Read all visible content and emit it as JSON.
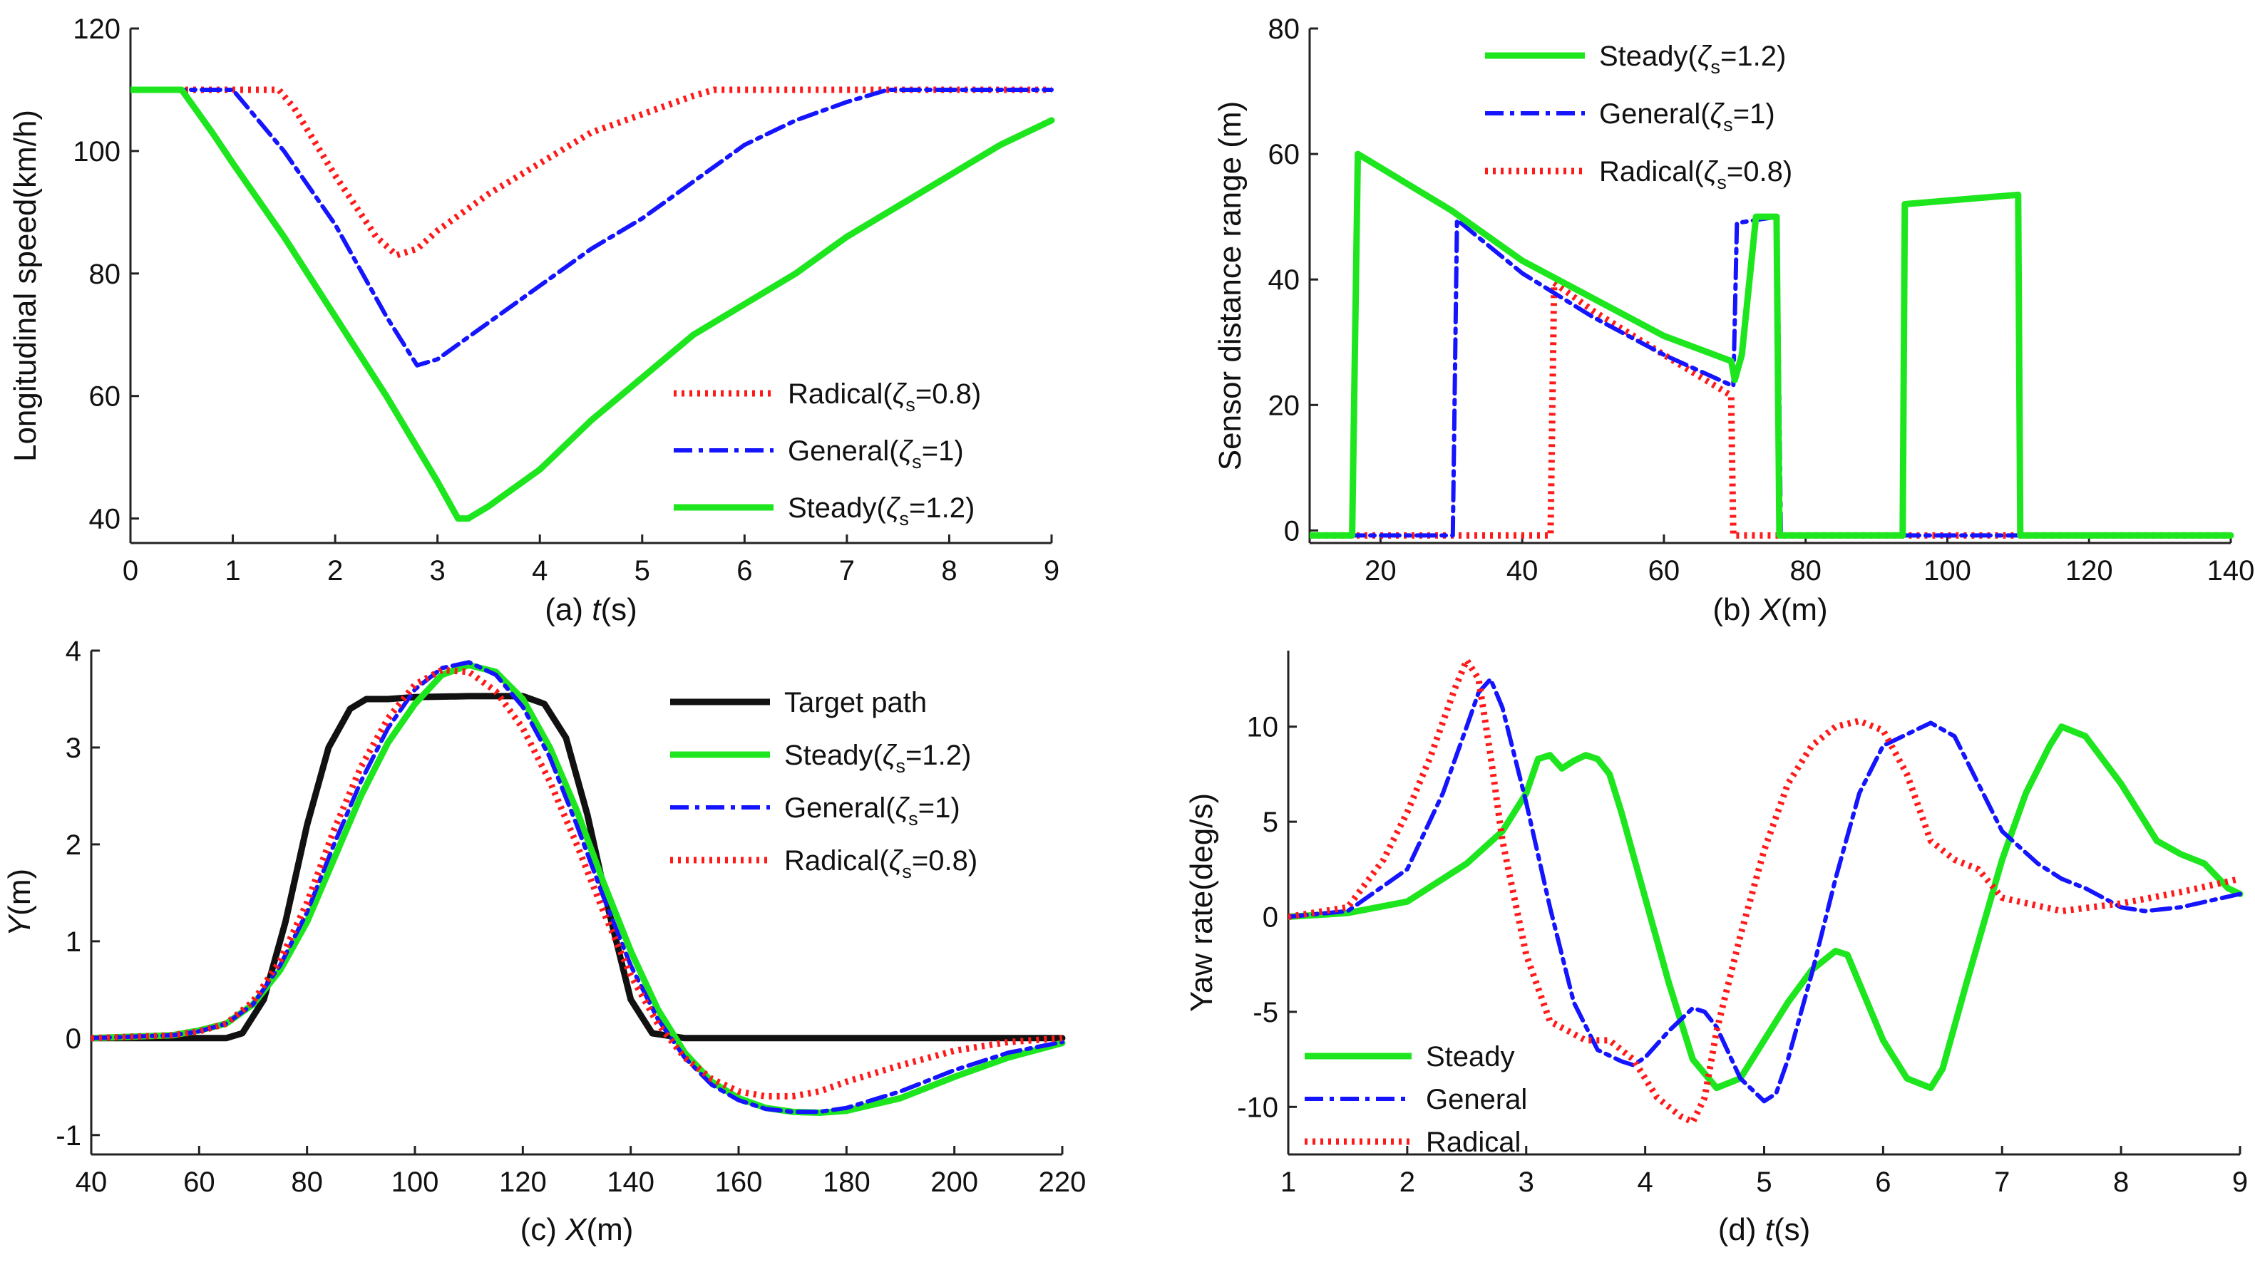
{
  "figure": {
    "panels": 4
  },
  "chart_data": [
    {
      "id": "a",
      "type": "line",
      "caption_prefix": "(a) ",
      "xlabel": "t",
      "xunit": "(s)",
      "ylabel": "Longitudinal speed(km/h)",
      "xlim": [
        0,
        9
      ],
      "ylim": [
        36,
        120
      ],
      "xticks": [
        0,
        1,
        2,
        3,
        4,
        5,
        6,
        7,
        8,
        9
      ],
      "yticks": [
        40,
        60,
        80,
        100,
        120
      ],
      "legend_position": "bottom-right",
      "legend_order": [
        0,
        1,
        2
      ],
      "series": [
        {
          "name_base": "Radical(",
          "zeta": "ζ",
          "sub": "s",
          "name_tail": "=0.8)",
          "color": "#ff1a1a",
          "style": "dotted",
          "x": [
            0,
            0.5,
            1.0,
            1.45,
            1.6,
            2.0,
            2.4,
            2.6,
            2.8,
            3.0,
            3.5,
            4.0,
            4.5,
            5.0,
            5.5,
            5.7,
            6.0,
            7.0,
            8.0,
            9.0
          ],
          "y": [
            110,
            110,
            110,
            110,
            107,
            96,
            86,
            83,
            84,
            87,
            93,
            98,
            103,
            106,
            109,
            110,
            110,
            110,
            110,
            110
          ]
        },
        {
          "name_base": "General(",
          "zeta": "ζ",
          "sub": "s",
          "name_tail": "=1)",
          "color": "#1414ff",
          "style": "dashdot",
          "x": [
            0,
            0.5,
            1.0,
            1.5,
            2.0,
            2.5,
            2.8,
            3.0,
            3.5,
            4.0,
            4.5,
            5.0,
            5.5,
            6.0,
            6.5,
            7.0,
            7.4,
            7.6,
            8.0,
            9.0
          ],
          "y": [
            110,
            110,
            110,
            100,
            88,
            73,
            65,
            66,
            72,
            78,
            84,
            89,
            95,
            101,
            105,
            108,
            110,
            110,
            110,
            110
          ]
        },
        {
          "name_base": "Steady(",
          "zeta": "ζ",
          "sub": "s",
          "name_tail": "=1.2)",
          "color": "#1ee61e",
          "style": "solid",
          "x": [
            0,
            0.3,
            0.5,
            0.8,
            1.0,
            1.5,
            2.0,
            2.5,
            3.0,
            3.2,
            3.3,
            3.5,
            4.0,
            4.5,
            5.0,
            5.5,
            6.0,
            6.5,
            7.0,
            7.5,
            8.0,
            8.5,
            9.0
          ],
          "y": [
            110,
            110,
            110,
            103,
            98,
            86,
            73,
            60,
            46,
            40,
            40,
            42,
            48,
            56,
            63,
            70,
            75,
            80,
            86,
            91,
            96,
            101,
            105
          ]
        }
      ]
    },
    {
      "id": "b",
      "type": "line",
      "caption_prefix": "(b)  ",
      "xlabel": "X",
      "xunit": "(m)",
      "ylabel": "Sensor distance range (m)",
      "xlim": [
        10,
        140
      ],
      "ylim": [
        -2,
        80
      ],
      "xticks": [
        20,
        40,
        60,
        80,
        100,
        120,
        140
      ],
      "yticks": [
        0,
        20,
        40,
        60,
        80
      ],
      "legend_position": "top-center",
      "legend_order": [
        2,
        1,
        0
      ],
      "series": [
        {
          "name_base": "Radical(",
          "zeta": "ζ",
          "sub": "s",
          "name_tail": "=0.8)",
          "color": "#ff1a1a",
          "style": "dotted",
          "x": [
            10,
            44,
            44.5,
            50,
            60,
            69.5,
            69.6,
            69.8,
            140
          ],
          "y": [
            -0.8,
            -0.8,
            39.5,
            35,
            28,
            21.5,
            13,
            -0.8,
            -0.8
          ]
        },
        {
          "name_base": "General(",
          "zeta": "ζ",
          "sub": "s",
          "name_tail": "=1)",
          "color": "#1414ff",
          "style": "dashdot",
          "x": [
            10,
            30.2,
            30.8,
            40,
            50,
            60,
            69.8,
            70.3,
            76,
            76.5,
            140
          ],
          "y": [
            -0.8,
            -0.8,
            49.5,
            41,
            34,
            28,
            23,
            49,
            50,
            -0.8,
            -0.8
          ]
        },
        {
          "name_base": "Steady(",
          "zeta": "ζ",
          "sub": "s",
          "name_tail": "=1.2)",
          "color": "#1ee61e",
          "style": "solid",
          "x": [
            10,
            16,
            16.8,
            30,
            40,
            50,
            60,
            69.5,
            70,
            71,
            73,
            75.5,
            75.9,
            76.3,
            93.7,
            94,
            110,
            110.3,
            140
          ],
          "y": [
            -0.8,
            -0.8,
            60,
            51,
            43,
            37,
            31,
            27,
            24,
            28,
            50,
            50,
            50,
            -0.8,
            -0.8,
            52,
            53.5,
            -0.8,
            -0.8
          ]
        }
      ]
    },
    {
      "id": "c",
      "type": "line",
      "caption_prefix": "(c)  ",
      "xlabel": "X",
      "xunit": "(m)",
      "ylabel": "Y",
      "yunit": "(m)",
      "xlim": [
        40,
        220
      ],
      "ylim": [
        -1.2,
        4
      ],
      "xticks": [
        40,
        60,
        80,
        100,
        120,
        140,
        160,
        180,
        200,
        220
      ],
      "yticks": [
        -1,
        0,
        1,
        2,
        3,
        4
      ],
      "legend_position": "top-right",
      "legend_order": [
        0,
        1,
        2,
        3
      ],
      "series": [
        {
          "name": "Target path",
          "color": "#111111",
          "style": "solid",
          "x": [
            40,
            65,
            68,
            72,
            76,
            80,
            84,
            88,
            91,
            95,
            100,
            110,
            120,
            124,
            128,
            132,
            136,
            140,
            144,
            150,
            160,
            180,
            220
          ],
          "y": [
            0,
            0,
            0.05,
            0.4,
            1.2,
            2.2,
            3.0,
            3.4,
            3.5,
            3.5,
            3.52,
            3.53,
            3.53,
            3.45,
            3.1,
            2.3,
            1.3,
            0.4,
            0.05,
            0,
            0,
            0,
            0
          ]
        },
        {
          "name_base": "Steady(",
          "zeta": "ζ",
          "sub": "s",
          "name_tail": "=1.2)",
          "color": "#1ee61e",
          "style": "solid",
          "x": [
            40,
            55,
            60,
            65,
            70,
            75,
            80,
            85,
            90,
            95,
            100,
            105,
            110,
            115,
            120,
            125,
            130,
            135,
            140,
            145,
            150,
            155,
            160,
            165,
            170,
            175,
            180,
            190,
            200,
            210,
            220
          ],
          "y": [
            0,
            0.03,
            0.08,
            0.15,
            0.35,
            0.7,
            1.2,
            1.85,
            2.5,
            3.05,
            3.45,
            3.75,
            3.85,
            3.78,
            3.5,
            3.0,
            2.35,
            1.6,
            0.9,
            0.3,
            -0.15,
            -0.45,
            -0.62,
            -0.72,
            -0.76,
            -0.77,
            -0.75,
            -0.62,
            -0.4,
            -0.2,
            -0.05
          ]
        },
        {
          "name_base": "General(",
          "zeta": "ζ",
          "sub": "s",
          "name_tail": "=1)",
          "color": "#1414ff",
          "style": "dashdot",
          "x": [
            40,
            55,
            60,
            65,
            70,
            75,
            80,
            85,
            90,
            95,
            100,
            105,
            110,
            115,
            120,
            125,
            130,
            135,
            140,
            145,
            150,
            155,
            160,
            165,
            170,
            175,
            180,
            190,
            200,
            210,
            220
          ],
          "y": [
            0,
            0.03,
            0.07,
            0.15,
            0.35,
            0.75,
            1.3,
            2.0,
            2.65,
            3.2,
            3.6,
            3.82,
            3.88,
            3.75,
            3.42,
            2.9,
            2.2,
            1.45,
            0.75,
            0.2,
            -0.2,
            -0.48,
            -0.64,
            -0.73,
            -0.76,
            -0.76,
            -0.72,
            -0.55,
            -0.33,
            -0.15,
            -0.04
          ]
        },
        {
          "name_base": "Radical(",
          "zeta": "ζ",
          "sub": "s",
          "name_tail": "=0.8)",
          "color": "#ff1a1a",
          "style": "dotted",
          "x": [
            40,
            55,
            60,
            65,
            70,
            75,
            80,
            85,
            90,
            95,
            100,
            105,
            110,
            115,
            120,
            125,
            130,
            135,
            140,
            145,
            150,
            155,
            160,
            165,
            170,
            175,
            180,
            190,
            200,
            210,
            220
          ],
          "y": [
            0,
            0.03,
            0.07,
            0.15,
            0.38,
            0.8,
            1.4,
            2.15,
            2.8,
            3.3,
            3.65,
            3.8,
            3.78,
            3.58,
            3.2,
            2.65,
            2.0,
            1.3,
            0.65,
            0.15,
            -0.2,
            -0.42,
            -0.55,
            -0.6,
            -0.6,
            -0.55,
            -0.45,
            -0.28,
            -0.13,
            -0.04,
            0
          ]
        }
      ]
    },
    {
      "id": "d",
      "type": "line",
      "caption_prefix": "(d)  ",
      "xlabel": "t",
      "xunit": "(s)",
      "ylabel": "Yaw rate(deg/s)",
      "xlim": [
        1,
        9
      ],
      "ylim": [
        -12.5,
        14
      ],
      "xticks": [
        1,
        2,
        3,
        4,
        5,
        6,
        7,
        8,
        9
      ],
      "yticks": [
        -10,
        -5,
        0,
        5,
        10
      ],
      "legend_position": "bottom-left",
      "legend_order": [
        0,
        1,
        2
      ],
      "series": [
        {
          "name": "Steady",
          "color": "#1ee61e",
          "style": "solid",
          "x": [
            1,
            1.5,
            2.0,
            2.5,
            2.8,
            3.0,
            3.1,
            3.2,
            3.3,
            3.4,
            3.5,
            3.6,
            3.7,
            3.8,
            4.0,
            4.2,
            4.4,
            4.6,
            4.8,
            5.0,
            5.2,
            5.4,
            5.6,
            5.7,
            5.8,
            6.0,
            6.2,
            6.4,
            6.5,
            6.7,
            7.0,
            7.2,
            7.4,
            7.5,
            7.7,
            8.0,
            8.3,
            8.5,
            8.7,
            8.9,
            9.0
          ],
          "y": [
            0,
            0.2,
            0.8,
            2.8,
            4.5,
            6.5,
            8.3,
            8.5,
            7.8,
            8.2,
            8.5,
            8.3,
            7.5,
            5.5,
            1.0,
            -3.5,
            -7.5,
            -9.0,
            -8.5,
            -6.5,
            -4.5,
            -2.8,
            -1.8,
            -2.0,
            -3.5,
            -6.5,
            -8.5,
            -9.0,
            -8.0,
            -3.5,
            3.0,
            6.5,
            9.0,
            10.0,
            9.5,
            7.0,
            4.0,
            3.3,
            2.8,
            1.5,
            1.2
          ]
        },
        {
          "name": "General",
          "color": "#1414ff",
          "style": "dashdot",
          "x": [
            1,
            1.5,
            2.0,
            2.3,
            2.5,
            2.6,
            2.7,
            2.8,
            3.0,
            3.2,
            3.4,
            3.6,
            3.8,
            3.9,
            4.0,
            4.2,
            4.4,
            4.5,
            4.6,
            4.8,
            5.0,
            5.1,
            5.2,
            5.4,
            5.6,
            5.8,
            6.0,
            6.2,
            6.4,
            6.6,
            6.8,
            7.0,
            7.3,
            7.5,
            7.7,
            8.0,
            8.2,
            8.5,
            9.0
          ],
          "y": [
            0,
            0.3,
            2.5,
            6.5,
            10.0,
            11.8,
            12.5,
            11.0,
            6.0,
            0.5,
            -4.5,
            -7.0,
            -7.6,
            -7.8,
            -7.4,
            -6.0,
            -4.8,
            -5.0,
            -5.8,
            -8.5,
            -9.7,
            -9.3,
            -7.5,
            -3.0,
            2.0,
            6.5,
            9.0,
            9.6,
            10.2,
            9.5,
            7.0,
            4.5,
            2.8,
            2.0,
            1.5,
            0.5,
            0.3,
            0.5,
            1.2
          ]
        },
        {
          "name": "Radical",
          "color": "#ff1a1a",
          "style": "dotted",
          "x": [
            1,
            1.5,
            1.8,
            2.0,
            2.2,
            2.4,
            2.5,
            2.6,
            2.7,
            2.8,
            3.0,
            3.2,
            3.5,
            3.7,
            3.9,
            4.1,
            4.3,
            4.4,
            4.5,
            4.6,
            4.8,
            5.0,
            5.2,
            5.4,
            5.6,
            5.8,
            6.0,
            6.2,
            6.4,
            6.6,
            6.8,
            7.0,
            7.5,
            8.0,
            8.5,
            9.0
          ],
          "y": [
            0,
            0.5,
            3.0,
            5.5,
            8.5,
            12.0,
            13.5,
            12.5,
            8.5,
            4.0,
            -2.0,
            -5.5,
            -6.5,
            -6.5,
            -7.5,
            -9.5,
            -10.5,
            -10.8,
            -9.5,
            -6.0,
            -1.0,
            3.5,
            7.0,
            9.0,
            10.0,
            10.3,
            9.8,
            7.5,
            4.0,
            3.0,
            2.5,
            1.0,
            0.3,
            0.7,
            1.3,
            2.0
          ]
        }
      ]
    }
  ]
}
